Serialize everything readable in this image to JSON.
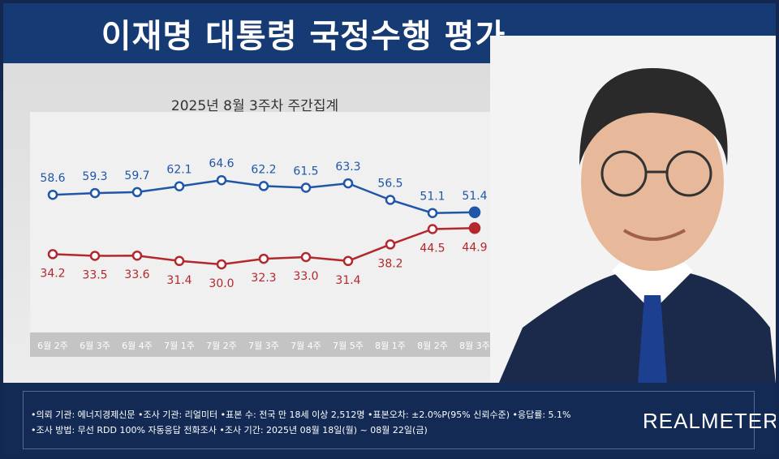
{
  "title": "이재명 대통령 국정수행 평가",
  "subtitle": "2025년 8월 3주차 주간집계",
  "chart_data": {
    "type": "line",
    "title": "2025년 8월 3주차 주간집계",
    "categories": [
      "6월 2주",
      "6월 3주",
      "6월 4주",
      "7월 1주",
      "7월 2주",
      "7월 3주",
      "7월 4주",
      "7월 5주",
      "8월 1주",
      "8월 2주",
      "8월 3주"
    ],
    "series": [
      {
        "values": [
          58.6,
          59.3,
          59.7,
          62.1,
          64.6,
          62.2,
          61.5,
          63.3,
          56.5,
          51.1,
          51.4
        ],
        "color": "#1f56a8"
      },
      {
        "values": [
          34.2,
          33.5,
          33.6,
          31.4,
          30.0,
          32.3,
          33.0,
          31.4,
          38.2,
          44.5,
          44.9
        ],
        "color": "#b3282d"
      }
    ],
    "grid": false,
    "legend": "none"
  },
  "footer": {
    "line1": "•의뢰 기관: 에너지경제신문 •조사 기관: 리얼미터 •표본 수: 전국 만 18세 이상 2,512명 •표본오차: ±2.0%P(95% 신뢰수준) •응답률: 5.1%",
    "line2": "•조사 방법: 무선 RDD 100% 자동응답 전화조사 •조사 기간: 2025년 08월 18일(월) ~ 08월 22일(금)"
  },
  "brand": "REALMETER"
}
